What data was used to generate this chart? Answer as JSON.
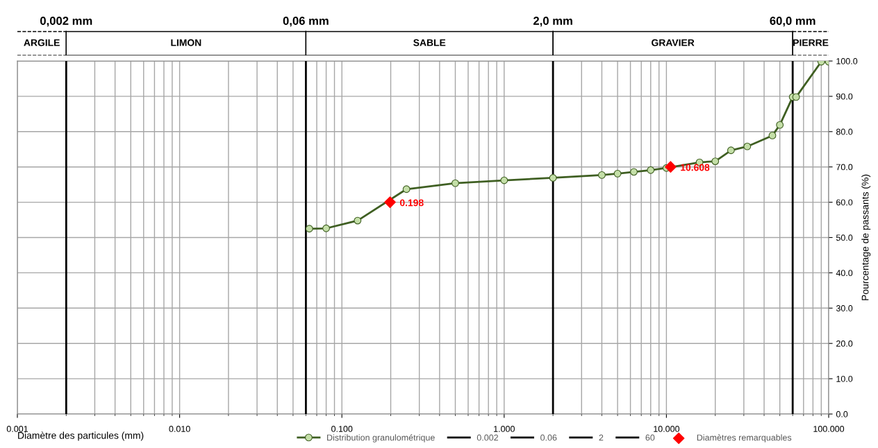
{
  "chart_data": {
    "type": "line",
    "xlabel": "Diamètre des particules (mm)",
    "ylabel": "Pourcentage de passants (%)",
    "log": "x",
    "grid": true,
    "legend": "bottom",
    "marker": "circle",
    "line_style": "solid",
    "xlim": [
      0.001,
      100
    ],
    "xticks": [
      {
        "value": 0.001,
        "label": "0.001"
      },
      {
        "value": 0.01,
        "label": "0.010"
      },
      {
        "value": 0.1,
        "label": "0.100"
      },
      {
        "value": 1,
        "label": "1.000"
      },
      {
        "value": 10,
        "label": "10.000"
      },
      {
        "value": 100,
        "label": "100.000"
      }
    ],
    "ylim": [
      0,
      100
    ],
    "yticks": [
      {
        "value": 0,
        "label": "0.0"
      },
      {
        "value": 10,
        "label": "10.0"
      },
      {
        "value": 20,
        "label": "20.0"
      },
      {
        "value": 30,
        "label": "30.0"
      },
      {
        "value": 40,
        "label": "40.0"
      },
      {
        "value": 50,
        "label": "50.0"
      },
      {
        "value": 60,
        "label": "60.0"
      },
      {
        "value": 70,
        "label": "70.0"
      },
      {
        "value": 80,
        "label": "80.0"
      },
      {
        "value": 90,
        "label": "90.0"
      },
      {
        "value": 100,
        "label": "100.0"
      }
    ],
    "series": [
      {
        "name": "Distribution granulométrique",
        "color": "#3f5f22",
        "x": [
          0.063,
          0.08,
          0.125,
          0.25,
          0.5,
          1,
          2,
          4,
          5,
          6.3,
          8,
          10,
          16,
          20,
          25,
          31.5,
          45,
          50,
          60,
          63,
          90,
          100
        ],
        "values": [
          52.5,
          52.6,
          54.8,
          63.7,
          65.4,
          66.2,
          66.9,
          67.7,
          68.1,
          68.6,
          69.1,
          69.7,
          71.3,
          71.6,
          74.7,
          75.8,
          78.9,
          81.9,
          89.8,
          89.8,
          99.8,
          99.8
        ]
      },
      {
        "name": "0.002",
        "type": "line",
        "color": "#000000",
        "marker": "none",
        "x": [
          0.002,
          0.002
        ],
        "values": [
          0,
          100
        ]
      },
      {
        "name": "0.06",
        "type": "line",
        "color": "#000000",
        "marker": "none",
        "x": [
          0.06,
          0.06
        ],
        "values": [
          0,
          100
        ]
      },
      {
        "name": "2",
        "type": "line",
        "color": "#000000",
        "marker": "none",
        "x": [
          2,
          2
        ],
        "values": [
          0,
          100
        ]
      },
      {
        "name": "60",
        "type": "line",
        "color": "#000000",
        "marker": "none",
        "x": [
          60,
          60
        ],
        "values": [
          0,
          100
        ]
      },
      {
        "name": "Diamètres remarquables",
        "type": "scatter",
        "color": "#ff0000",
        "marker": "diamond",
        "x": [
          0.198,
          10.608
        ],
        "values": [
          60,
          70
        ]
      }
    ],
    "annotations": [
      {
        "text": "0.198",
        "x": 0.198,
        "y": 60
      },
      {
        "text": "10.608",
        "x": 10.608,
        "y": 70
      },
      {
        "text": "0,002 mm",
        "x": 0.002
      },
      {
        "text": "0,06 mm",
        "x": 0.06
      },
      {
        "text": "2,0 mm",
        "x": 2
      },
      {
        "text": "60,0 mm",
        "x": 60
      },
      "ARGILE",
      "LIMON",
      "SABLE",
      "GRAVIER",
      "PIERRE"
    ]
  }
}
